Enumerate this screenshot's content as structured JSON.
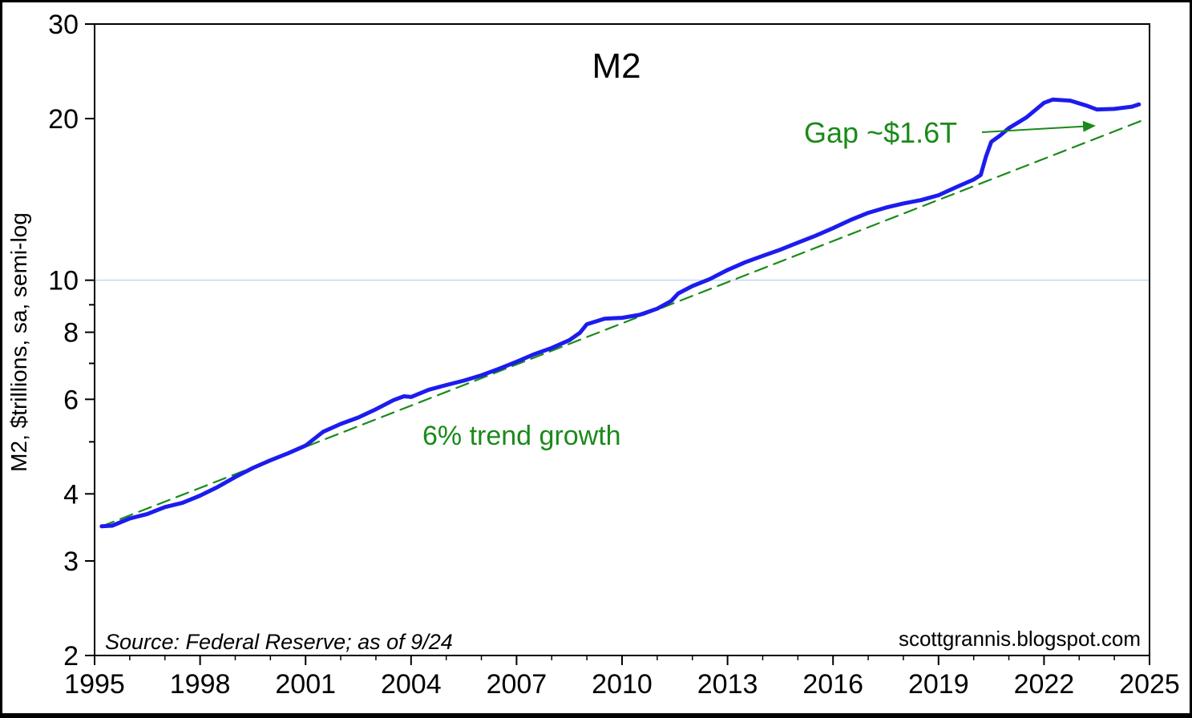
{
  "chart_data": {
    "type": "line",
    "title": "M2",
    "ylabel": "M2, $trillions, sa, semi-log",
    "xlabel": "",
    "yscale": "log",
    "ylim": [
      2,
      30
    ],
    "xlim": [
      1995,
      2025
    ],
    "x_ticks": [
      "1995",
      "1998",
      "2001",
      "2004",
      "2007",
      "2010",
      "2013",
      "2016",
      "2019",
      "2022",
      "2025"
    ],
    "y_ticks": [
      "2",
      "3",
      "4",
      "6",
      "8",
      "10",
      "20",
      "30"
    ],
    "y_minor_ticks": [
      5,
      7,
      9
    ],
    "gridline_at": 10,
    "source_note": "Source: Federal Reserve; as of 9/24",
    "watermark": "scottgrannis.blogspot.com",
    "annotations": {
      "trend_label": "6% trend growth",
      "gap_label": "Gap ~$1.6T"
    },
    "series": [
      {
        "name": "M2",
        "color": "#1c1cee",
        "points": [
          [
            1995.2,
            3.48
          ],
          [
            1995.5,
            3.49
          ],
          [
            1996.0,
            3.6
          ],
          [
            1996.5,
            3.67
          ],
          [
            1997.0,
            3.78
          ],
          [
            1997.5,
            3.85
          ],
          [
            1998.0,
            3.97
          ],
          [
            1998.5,
            4.12
          ],
          [
            1999.0,
            4.3
          ],
          [
            1999.5,
            4.47
          ],
          [
            2000.0,
            4.62
          ],
          [
            2000.5,
            4.76
          ],
          [
            2001.0,
            4.92
          ],
          [
            2001.5,
            5.22
          ],
          [
            2002.0,
            5.4
          ],
          [
            2002.5,
            5.55
          ],
          [
            2003.0,
            5.75
          ],
          [
            2003.5,
            5.98
          ],
          [
            2003.8,
            6.08
          ],
          [
            2004.0,
            6.06
          ],
          [
            2004.5,
            6.25
          ],
          [
            2005.0,
            6.38
          ],
          [
            2005.5,
            6.5
          ],
          [
            2006.0,
            6.65
          ],
          [
            2006.5,
            6.84
          ],
          [
            2007.0,
            7.05
          ],
          [
            2007.5,
            7.28
          ],
          [
            2008.0,
            7.48
          ],
          [
            2008.5,
            7.73
          ],
          [
            2008.8,
            7.98
          ],
          [
            2009.0,
            8.28
          ],
          [
            2009.5,
            8.48
          ],
          [
            2010.0,
            8.51
          ],
          [
            2010.5,
            8.62
          ],
          [
            2011.0,
            8.85
          ],
          [
            2011.4,
            9.15
          ],
          [
            2011.6,
            9.45
          ],
          [
            2012.0,
            9.75
          ],
          [
            2012.5,
            10.05
          ],
          [
            2013.0,
            10.45
          ],
          [
            2013.5,
            10.8
          ],
          [
            2014.0,
            11.1
          ],
          [
            2014.5,
            11.4
          ],
          [
            2015.0,
            11.75
          ],
          [
            2015.5,
            12.1
          ],
          [
            2016.0,
            12.5
          ],
          [
            2016.5,
            12.95
          ],
          [
            2017.0,
            13.35
          ],
          [
            2017.5,
            13.65
          ],
          [
            2018.0,
            13.9
          ],
          [
            2018.5,
            14.1
          ],
          [
            2019.0,
            14.4
          ],
          [
            2019.5,
            14.9
          ],
          [
            2020.0,
            15.4
          ],
          [
            2020.2,
            15.7
          ],
          [
            2020.35,
            17.0
          ],
          [
            2020.5,
            18.1
          ],
          [
            2020.75,
            18.6
          ],
          [
            2021.0,
            19.2
          ],
          [
            2021.5,
            20.1
          ],
          [
            2022.0,
            21.4
          ],
          [
            2022.25,
            21.7
          ],
          [
            2022.75,
            21.6
          ],
          [
            2023.25,
            21.1
          ],
          [
            2023.5,
            20.8
          ],
          [
            2024.0,
            20.85
          ],
          [
            2024.5,
            21.05
          ],
          [
            2024.7,
            21.25
          ]
        ]
      },
      {
        "name": "6% trend growth",
        "color": "#1a8a1a",
        "points": [
          [
            1995.2,
            3.48
          ],
          [
            2024.8,
            19.85
          ]
        ]
      }
    ]
  }
}
